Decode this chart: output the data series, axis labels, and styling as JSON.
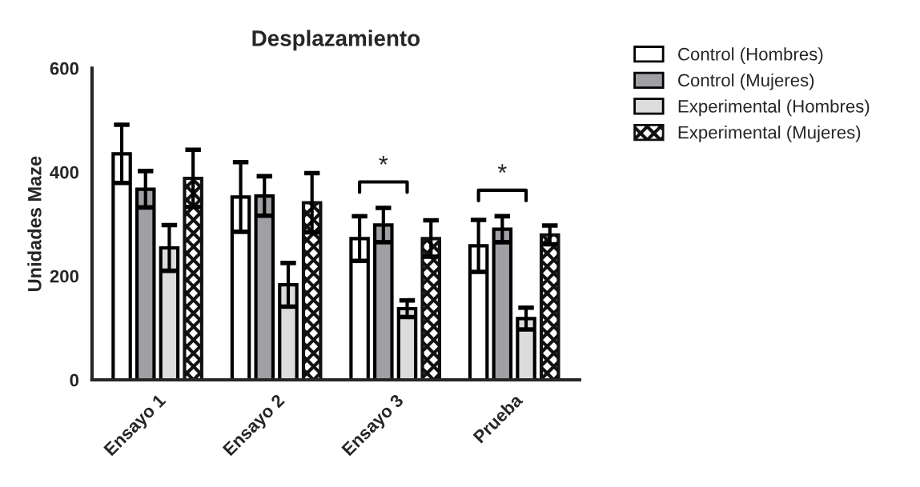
{
  "chart_data": {
    "type": "bar",
    "title": "Desplazamiento",
    "ylabel": "Unidades Maze",
    "categories": [
      "Ensayo 1",
      "Ensayo 2",
      "Ensayo 3",
      "Prueba"
    ],
    "series": [
      {
        "name": "Control (Hombres)",
        "color": "#ffffff",
        "values": [
          435,
          352,
          272,
          258
        ],
        "errors": [
          56,
          67,
          43,
          50
        ]
      },
      {
        "name": "Control (Mujeres)",
        "color": "#a0a0a4",
        "values": [
          367,
          354,
          298,
          290
        ],
        "errors": [
          35,
          38,
          33,
          25
        ]
      },
      {
        "name": "Experimental (Hombres)",
        "color": "#dcdcdc",
        "values": [
          254,
          183,
          137,
          118
        ],
        "errors": [
          44,
          42,
          16,
          21
        ]
      },
      {
        "name": "Experimental (Mujeres)",
        "color": "#111111",
        "values": [
          388,
          341,
          272,
          279
        ],
        "errors": [
          55,
          57,
          35,
          18
        ]
      }
    ],
    "ylim": [
      0,
      600
    ],
    "yticks": [
      0,
      200,
      400,
      600
    ],
    "grid": false,
    "legend": "right",
    "annotations": [
      "*",
      "*"
    ]
  }
}
